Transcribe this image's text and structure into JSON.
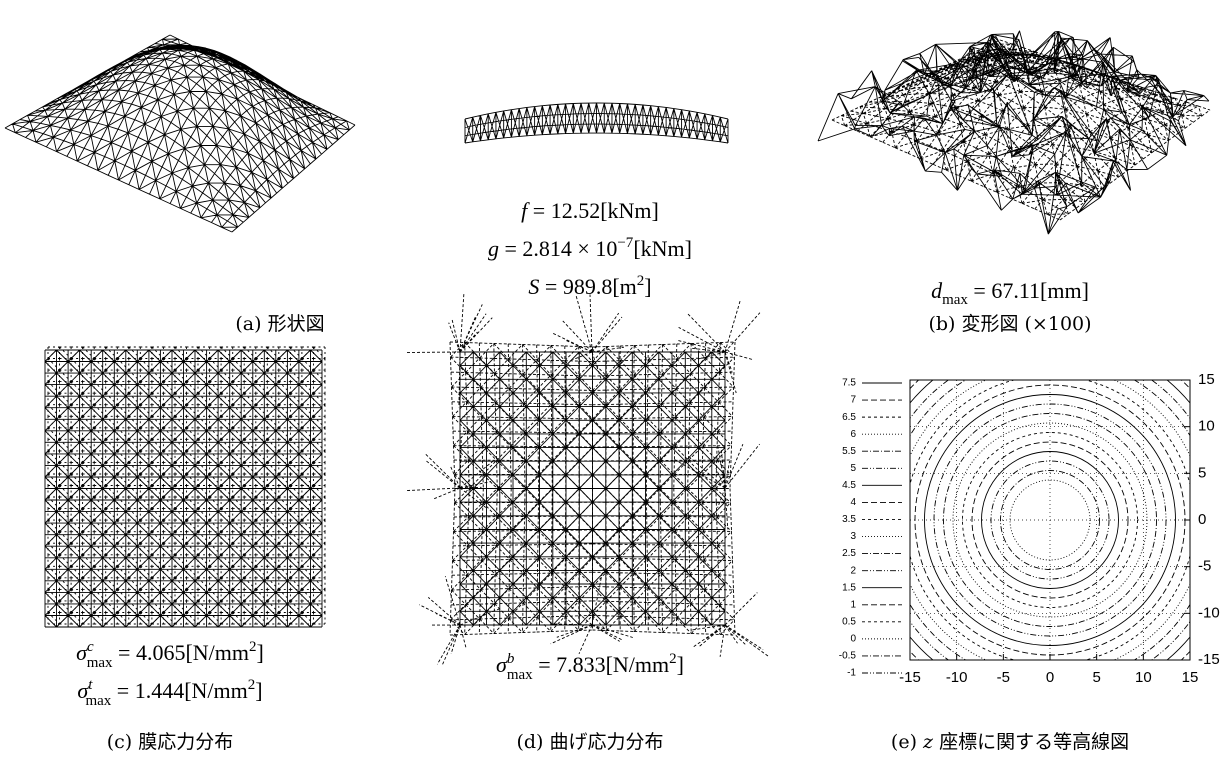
{
  "panel_a": {
    "caption": "(a) 形状図",
    "formulas": [
      [
        {
          "text": "f",
          "style": "italic"
        },
        {
          "text": " = 12.52[kNm]",
          "style": "roman"
        }
      ],
      [
        {
          "text": "g",
          "style": "italic"
        },
        {
          "text": " = 2.814 × 10",
          "style": "roman"
        },
        {
          "text": "−7",
          "style": "sup"
        },
        {
          "text": "[kNm]",
          "style": "roman"
        }
      ],
      [
        {
          "text": "S",
          "style": "italic"
        },
        {
          "text": " = 989.8[m",
          "style": "roman"
        },
        {
          "text": "2",
          "style": "sup"
        },
        {
          "text": "]",
          "style": "roman"
        }
      ]
    ]
  },
  "panel_b": {
    "caption": "(b) 変形図 (×100)",
    "formulas": [
      [
        {
          "text": "d",
          "style": "italic"
        },
        {
          "text": "max",
          "style": "sub"
        },
        {
          "text": " = 67.11[mm]",
          "style": "roman"
        }
      ]
    ]
  },
  "panel_c": {
    "caption": "(c) 膜応力分布",
    "formulas": [
      [
        {
          "text": "σ",
          "style": "italic"
        },
        {
          "text": "c",
          "style": "sup-italic"
        },
        {
          "text": "max",
          "style": "sub-under"
        },
        {
          "text": " = 4.065[N/mm",
          "style": "roman"
        },
        {
          "text": "2",
          "style": "sup"
        },
        {
          "text": "]",
          "style": "roman"
        }
      ],
      [
        {
          "text": "σ",
          "style": "italic"
        },
        {
          "text": "t",
          "style": "sup-italic"
        },
        {
          "text": "max",
          "style": "sub-under"
        },
        {
          "text": " = 1.444[N/mm",
          "style": "roman"
        },
        {
          "text": "2",
          "style": "sup"
        },
        {
          "text": "]",
          "style": "roman"
        }
      ]
    ]
  },
  "panel_d": {
    "caption": "(d) 曲げ応力分布",
    "formulas": [
      [
        {
          "text": "σ",
          "style": "italic"
        },
        {
          "text": "b",
          "style": "sup-italic"
        },
        {
          "text": "max",
          "style": "sub-under"
        },
        {
          "text": " = 7.833[N/mm",
          "style": "roman"
        },
        {
          "text": "2",
          "style": "sup"
        },
        {
          "text": "]",
          "style": "roman"
        }
      ]
    ]
  },
  "chart_data": {
    "type": "contour",
    "caption": [
      {
        "text": "(e) ",
        "style": "roman"
      },
      {
        "text": "z",
        "style": "italic"
      },
      {
        "text": " 座標に関する等高線図",
        "style": "roman"
      }
    ],
    "xlim": [
      -15,
      15
    ],
    "ylim": [
      -15,
      15
    ],
    "xticks": [
      -15,
      -10,
      -5,
      0,
      5,
      10,
      15
    ],
    "yticks": [
      -15,
      -10,
      -5,
      0,
      5,
      10,
      15
    ],
    "levels": [
      7.5,
      7,
      6.5,
      6,
      5.5,
      5,
      4.5,
      4,
      3.5,
      3,
      2.5,
      2,
      1.5,
      1,
      0.5,
      0,
      -0.5,
      -1
    ],
    "grid": true
  }
}
